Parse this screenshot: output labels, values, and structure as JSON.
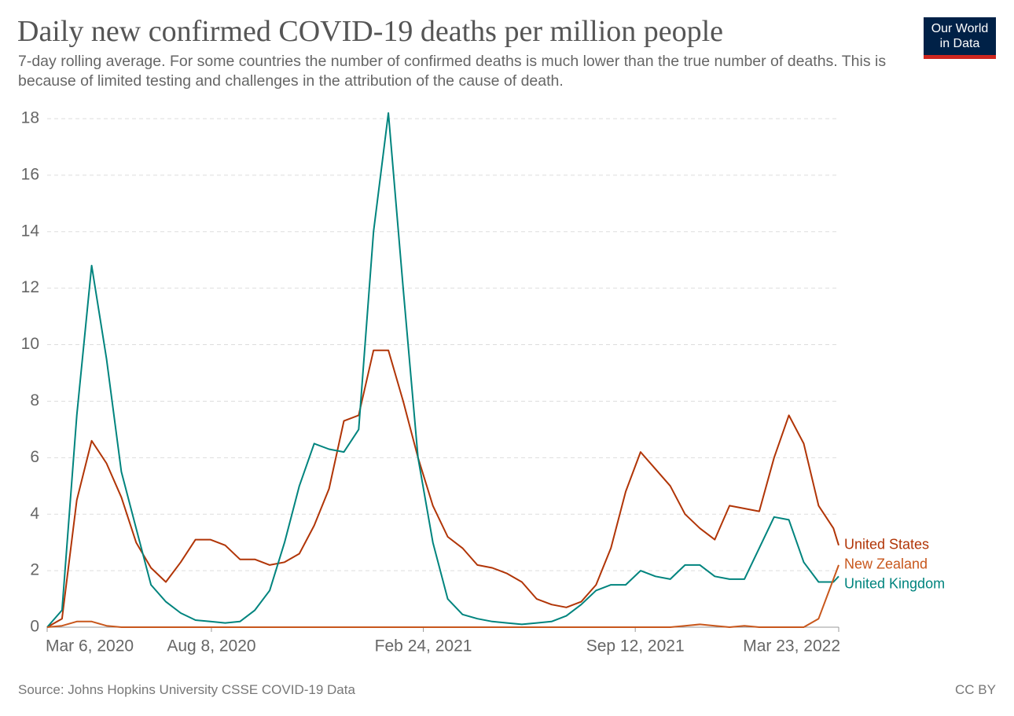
{
  "branding": [
    "Our World",
    "in Data"
  ],
  "chart_data": {
    "type": "line",
    "title": "Daily new confirmed COVID-19 deaths per million people",
    "subtitle": "7-day rolling average. For some countries the number of confirmed deaths is much lower than the true number of deaths. This is because of limited testing and challenges in the attribution of the cause of death.",
    "source": "Source: Johns Hopkins University CSSE COVID-19 Data",
    "license": "CC BY",
    "x": [
      "2020-03-06",
      "2020-03-20",
      "2020-04-03",
      "2020-04-17",
      "2020-05-01",
      "2020-05-15",
      "2020-05-29",
      "2020-06-12",
      "2020-06-26",
      "2020-07-10",
      "2020-07-24",
      "2020-08-07",
      "2020-08-21",
      "2020-09-04",
      "2020-09-18",
      "2020-10-02",
      "2020-10-16",
      "2020-10-30",
      "2020-11-13",
      "2020-11-27",
      "2020-12-11",
      "2020-12-25",
      "2021-01-08",
      "2021-01-22",
      "2021-02-05",
      "2021-02-19",
      "2021-03-05",
      "2021-03-19",
      "2021-04-02",
      "2021-04-16",
      "2021-04-30",
      "2021-05-14",
      "2021-05-28",
      "2021-06-11",
      "2021-06-25",
      "2021-07-09",
      "2021-07-23",
      "2021-08-06",
      "2021-08-20",
      "2021-09-03",
      "2021-09-17",
      "2021-10-01",
      "2021-10-15",
      "2021-10-29",
      "2021-11-12",
      "2021-11-26",
      "2021-12-10",
      "2021-12-24",
      "2022-01-07",
      "2022-01-21",
      "2022-02-04",
      "2022-02-18",
      "2022-03-04",
      "2022-03-18",
      "2022-03-23"
    ],
    "series": [
      {
        "name": "United States",
        "color": "#b13507",
        "values": [
          0,
          0.3,
          4.5,
          6.6,
          5.8,
          4.6,
          3.0,
          2.1,
          1.6,
          2.3,
          3.1,
          3.1,
          2.9,
          2.4,
          2.4,
          2.2,
          2.3,
          2.6,
          3.6,
          4.9,
          7.3,
          7.5,
          9.8,
          9.8,
          8.0,
          6.0,
          4.3,
          3.2,
          2.8,
          2.2,
          2.1,
          1.9,
          1.6,
          1.0,
          0.8,
          0.7,
          0.9,
          1.5,
          2.8,
          4.8,
          6.2,
          5.6,
          5.0,
          4.0,
          3.5,
          3.1,
          4.3,
          4.2,
          4.1,
          6.0,
          7.5,
          6.5,
          4.3,
          3.5,
          2.9
        ]
      },
      {
        "name": "United Kingdom",
        "color": "#00847e",
        "values": [
          0,
          0.6,
          7.5,
          12.8,
          9.5,
          5.5,
          3.5,
          1.5,
          0.9,
          0.5,
          0.25,
          0.2,
          0.15,
          0.2,
          0.6,
          1.3,
          3.0,
          5.0,
          6.5,
          6.3,
          6.2,
          7.0,
          14.0,
          18.2,
          12.0,
          6.0,
          3.0,
          1.0,
          0.45,
          0.3,
          0.2,
          0.15,
          0.1,
          0.15,
          0.2,
          0.4,
          0.8,
          1.3,
          1.5,
          1.5,
          2.0,
          1.8,
          1.7,
          2.2,
          2.2,
          1.8,
          1.7,
          1.7,
          2.8,
          3.9,
          3.8,
          2.3,
          1.6,
          1.6,
          1.8
        ]
      },
      {
        "name": "New Zealand",
        "color": "#c8571c",
        "values": [
          0,
          0.05,
          0.2,
          0.2,
          0.05,
          0,
          0,
          0,
          0,
          0,
          0,
          0,
          0,
          0,
          0,
          0,
          0,
          0,
          0,
          0,
          0,
          0,
          0,
          0,
          0,
          0,
          0,
          0,
          0,
          0,
          0,
          0,
          0,
          0,
          0,
          0,
          0,
          0,
          0,
          0,
          0,
          0,
          0,
          0.05,
          0.1,
          0.05,
          0,
          0.05,
          0,
          0,
          0,
          0,
          0.3,
          1.7,
          2.2
        ]
      }
    ],
    "xlim": [
      "2020-03-06",
      "2022-03-23"
    ],
    "xticks": [
      {
        "value": "2020-03-06",
        "label": "Mar 6, 2020"
      },
      {
        "value": "2020-08-08",
        "label": "Aug 8, 2020"
      },
      {
        "value": "2021-02-24",
        "label": "Feb 24, 2021"
      },
      {
        "value": "2021-09-12",
        "label": "Sep 12, 2021"
      },
      {
        "value": "2022-03-23",
        "label": "Mar 23, 2022"
      }
    ],
    "ylim": [
      0,
      18
    ],
    "yticks": [
      0,
      2,
      4,
      6,
      8,
      10,
      12,
      14,
      16,
      18
    ],
    "grid": true
  }
}
